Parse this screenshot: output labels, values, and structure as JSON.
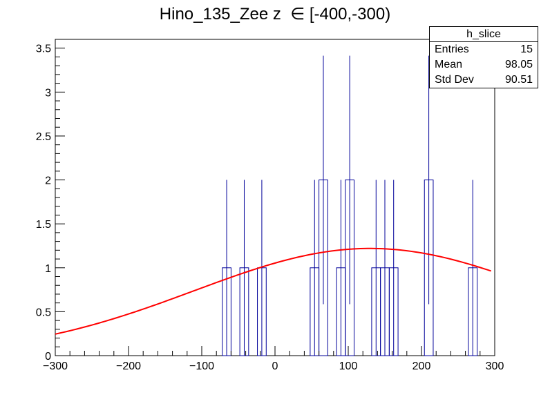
{
  "chart_data": {
    "type": "bar",
    "title": "Hino_135_Zee z  ∈ [-400,-300)",
    "xlabel": "",
    "ylabel": "",
    "xlim": [
      -300,
      300
    ],
    "ylim": [
      0,
      3.6
    ],
    "x_ticks": [
      -300,
      -200,
      -100,
      0,
      100,
      200,
      300
    ],
    "x_tick_labels": [
      "−300",
      "−200",
      "−100",
      "0",
      "100",
      "200",
      "300"
    ],
    "y_ticks": [
      0,
      0.5,
      1,
      1.5,
      2,
      2.5,
      3,
      3.5
    ],
    "y_tick_labels": [
      "0",
      "0.5",
      "1",
      "1.5",
      "2",
      "2.5",
      "3",
      "3.5"
    ],
    "grid": false,
    "histogram": {
      "bin_width": 12,
      "bins": [
        {
          "x0": -72,
          "x1": -60,
          "value": 1,
          "error": 1
        },
        {
          "x0": -48,
          "x1": -36,
          "value": 1,
          "error": 1
        },
        {
          "x0": -24,
          "x1": -12,
          "value": 1,
          "error": 1
        },
        {
          "x0": 48,
          "x1": 60,
          "value": 1,
          "error": 1
        },
        {
          "x0": 60,
          "x1": 72,
          "value": 2,
          "error": 1.414
        },
        {
          "x0": 84,
          "x1": 96,
          "value": 1,
          "error": 1
        },
        {
          "x0": 96,
          "x1": 108,
          "value": 2,
          "error": 1.414
        },
        {
          "x0": 132,
          "x1": 144,
          "value": 1,
          "error": 1
        },
        {
          "x0": 144,
          "x1": 156,
          "value": 1,
          "error": 1
        },
        {
          "x0": 156,
          "x1": 168,
          "value": 1,
          "error": 1
        },
        {
          "x0": 204,
          "x1": 216,
          "value": 2,
          "error": 1.414
        },
        {
          "x0": 264,
          "x1": 276,
          "value": 1,
          "error": 1
        }
      ],
      "color": "#000099"
    },
    "fit": {
      "type": "gaussian",
      "amplitude": 1.22,
      "mean": 130,
      "sigma": 240,
      "x_range": [
        -300,
        295
      ],
      "color": "#ff0000"
    }
  },
  "stats": {
    "name": "h_slice",
    "rows": [
      {
        "label": "Entries",
        "value": "15"
      },
      {
        "label": "Mean",
        "value": "98.05"
      },
      {
        "label": "Std Dev",
        "value": "90.51"
      }
    ]
  }
}
